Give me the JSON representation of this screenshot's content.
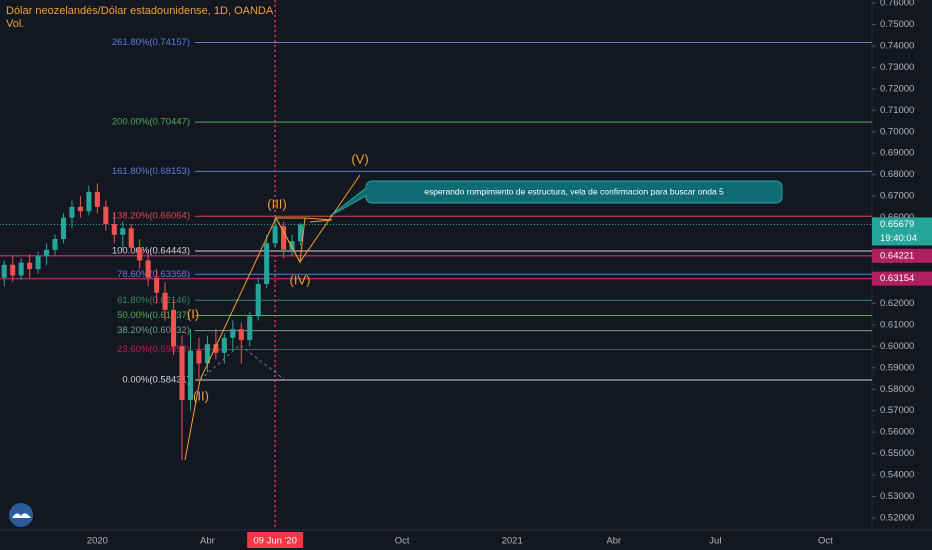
{
  "chart_data": {
    "type": "candlestick",
    "title": "Dólar neozelandés/Dólar estadounidense, 1D, OANDA",
    "volume_label": "Vol.",
    "categories": [
      null,
      null,
      null,
      null,
      null,
      null,
      null,
      null,
      null,
      null,
      null,
      "2020",
      null,
      null,
      null,
      null,
      null,
      null,
      null,
      null,
      null,
      null,
      null,
      null,
      "Abr",
      null,
      null,
      null,
      null,
      null,
      null,
      null,
      "09 Jun '20",
      null,
      null,
      null,
      null,
      null,
      null,
      null,
      null,
      null,
      null,
      null,
      null,
      null,
      null,
      "Oct",
      null,
      null,
      null,
      null,
      null,
      null,
      null,
      null,
      null,
      null,
      null,
      null,
      "2021",
      null,
      null,
      null,
      null,
      null,
      null,
      null,
      null,
      null,
      null,
      null,
      "Abr",
      null,
      null,
      null,
      null,
      null,
      null,
      null,
      null,
      null,
      null,
      null,
      "Jul",
      null,
      null,
      null,
      null,
      null,
      null,
      null,
      null,
      null,
      null,
      null,
      null,
      "Oct",
      null,
      null,
      null,
      null,
      null
    ],
    "open": [
      0.632,
      0.638,
      0.633,
      0.639,
      0.636,
      0.642,
      0.645,
      0.65,
      0.66,
      0.665,
      0.663,
      0.672,
      0.665,
      0.657,
      0.652,
      0.655,
      0.646,
      0.64,
      0.632,
      0.625,
      0.617,
      0.6,
      0.575,
      0.598,
      0.592,
      0.601,
      0.597,
      0.604,
      0.608,
      0.603,
      0.614,
      0.629,
      0.648,
      0.656,
      0.645,
      0.649,
      null,
      null,
      null,
      null,
      null,
      null,
      null,
      null,
      null,
      null,
      null,
      null,
      null,
      null,
      null,
      null,
      null,
      null,
      null,
      null,
      null,
      null,
      null,
      null,
      null,
      null,
      null,
      null,
      null,
      null,
      null,
      null,
      null,
      null,
      null,
      null,
      null,
      null,
      null,
      null,
      null,
      null,
      null,
      null,
      null,
      null,
      null,
      null,
      null,
      null,
      null,
      null,
      null,
      null,
      null,
      null,
      null,
      null,
      null,
      null,
      null,
      null,
      null,
      null,
      null,
      null,
      null
    ],
    "high": [
      0.64,
      0.642,
      0.641,
      0.643,
      0.644,
      0.648,
      0.652,
      0.662,
      0.668,
      0.67,
      0.675,
      0.676,
      0.668,
      0.662,
      0.658,
      0.657,
      0.65,
      0.644,
      0.636,
      0.63,
      0.622,
      0.605,
      0.608,
      0.604,
      0.605,
      0.608,
      0.606,
      0.612,
      0.611,
      0.616,
      0.632,
      0.652,
      0.6605,
      0.658,
      0.652,
      0.6575,
      null,
      null,
      null,
      null,
      null,
      null,
      null,
      null,
      null,
      null,
      null,
      null,
      null,
      null,
      null,
      null,
      null,
      null,
      null,
      null,
      null,
      null,
      null,
      null,
      null,
      null,
      null,
      null,
      null,
      null,
      null,
      null,
      null,
      null,
      null,
      null,
      null,
      null,
      null,
      null,
      null,
      null,
      null,
      null,
      null,
      null,
      null,
      null,
      null,
      null,
      null,
      null,
      null,
      null,
      null,
      null,
      null,
      null,
      null,
      null,
      null,
      null,
      null,
      null,
      null,
      null,
      null
    ],
    "low": [
      0.628,
      0.63,
      0.631,
      0.632,
      0.634,
      0.638,
      0.642,
      0.648,
      0.655,
      0.66,
      0.661,
      0.662,
      0.654,
      0.648,
      0.645,
      0.644,
      0.636,
      0.628,
      0.62,
      0.612,
      0.596,
      0.547,
      0.57,
      0.584,
      0.588,
      0.594,
      0.592,
      0.598,
      0.592,
      0.6,
      0.612,
      0.627,
      0.646,
      0.641,
      0.642,
      0.647,
      null,
      null,
      null,
      null,
      null,
      null,
      null,
      null,
      null,
      null,
      null,
      null,
      null,
      null,
      null,
      null,
      null,
      null,
      null,
      null,
      null,
      null,
      null,
      null,
      null,
      null,
      null,
      null,
      null,
      null,
      null,
      null,
      null,
      null,
      null,
      null,
      null,
      null,
      null,
      null,
      null,
      null,
      null,
      null,
      null,
      null,
      null,
      null,
      null,
      null,
      null,
      null,
      null,
      null,
      null,
      null,
      null,
      null,
      null,
      null,
      null,
      null,
      null,
      null,
      null,
      null,
      null
    ],
    "close": [
      0.638,
      0.633,
      0.639,
      0.636,
      0.642,
      0.645,
      0.65,
      0.66,
      0.665,
      0.663,
      0.672,
      0.665,
      0.657,
      0.652,
      0.655,
      0.646,
      0.64,
      0.632,
      0.625,
      0.617,
      0.6,
      0.575,
      0.598,
      0.592,
      0.601,
      0.597,
      0.604,
      0.608,
      0.603,
      0.614,
      0.629,
      0.648,
      0.656,
      0.645,
      0.649,
      0.65679,
      null,
      null,
      null,
      null,
      null,
      null,
      null,
      null,
      null,
      null,
      null,
      null,
      null,
      null,
      null,
      null,
      null,
      null,
      null,
      null,
      null,
      null,
      null,
      null,
      null,
      null,
      null,
      null,
      null,
      null,
      null,
      null,
      null,
      null,
      null,
      null,
      null,
      null,
      null,
      null,
      null,
      null,
      null,
      null,
      null,
      null,
      null,
      null,
      null,
      null,
      null,
      null,
      null,
      null,
      null,
      null,
      null,
      null,
      null,
      null,
      null,
      null,
      null,
      null,
      null,
      null,
      null
    ],
    "up_color": "#26a69a",
    "down_color": "#ef5350",
    "ylim": [
      0.5144,
      0.7614
    ],
    "yticks": [
      {
        "value": 0.52,
        "label": "0.52000"
      },
      {
        "value": 0.53,
        "label": "0.53000"
      },
      {
        "value": 0.54,
        "label": "0.54000"
      },
      {
        "value": 0.55,
        "label": "0.55000"
      },
      {
        "value": 0.56,
        "label": "0.56000"
      },
      {
        "value": 0.57,
        "label": "0.57000"
      },
      {
        "value": 0.58,
        "label": "0.58000"
      },
      {
        "value": 0.59,
        "label": "0.59000"
      },
      {
        "value": 0.6,
        "label": "0.60000"
      },
      {
        "value": 0.61,
        "label": "0.61000"
      },
      {
        "value": 0.62,
        "label": "0.62000"
      },
      {
        "value": 0.63,
        "label": "0.63000"
      },
      {
        "value": 0.64,
        "label": "0.64000"
      },
      {
        "value": 0.65,
        "label": "0.65000"
      },
      {
        "value": 0.66,
        "label": "0.66000"
      },
      {
        "value": 0.67,
        "label": "0.67000"
      },
      {
        "value": 0.68,
        "label": "0.68000"
      },
      {
        "value": 0.69,
        "label": "0.69000"
      },
      {
        "value": 0.7,
        "label": "0.70000"
      },
      {
        "value": 0.71,
        "label": "0.71000"
      },
      {
        "value": 0.72,
        "label": "0.72000"
      },
      {
        "value": 0.73,
        "label": "0.73000"
      },
      {
        "value": 0.74,
        "label": "0.74000"
      },
      {
        "value": 0.75,
        "label": "0.75000"
      },
      {
        "value": 0.76,
        "label": "0.76000"
      }
    ],
    "grid": false,
    "fib_levels": [
      {
        "label": "261.80%(0.74157)",
        "value": 0.74157,
        "color": "#5b7fd6"
      },
      {
        "label": "200.00%(0.70447)",
        "value": 0.70447,
        "color": "#4caf50"
      },
      {
        "label": "161.80%(0.68153)",
        "value": 0.68153,
        "color": "#5b7fd6"
      },
      {
        "label": "138.20%(0.66064)",
        "value": 0.66064,
        "color": "#e04848"
      },
      {
        "label": "100.00%(0.64443)",
        "value": 0.64443,
        "color": "#d1d4dc"
      },
      {
        "label": "78.60%(0.63358)",
        "value": 0.63358,
        "color": "#5b7fd6"
      },
      {
        "label": "61.80%(0.62146)",
        "value": 0.62146,
        "color": "#2e8b57"
      },
      {
        "label": "50.00%(0.61437)",
        "value": 0.61437,
        "color": "#4caf50"
      },
      {
        "label": "38.20%(0.60732)",
        "value": 0.60732,
        "color": "#66a87a"
      },
      {
        "label": "23.60%(0.59850)",
        "value": 0.5985,
        "color": "#c2185b"
      },
      {
        "label": "0.00%(0.58431)",
        "value": 0.58431,
        "color": "#d1d4dc"
      }
    ],
    "levels": [
      {
        "value": 0.64221,
        "color": "#b0205f"
      },
      {
        "value": 0.63154,
        "color": "#b0205f"
      }
    ],
    "last_price": 0.65679,
    "countdown": "19:40:04",
    "annotations": [
      "(I)",
      "(II)",
      "(III)",
      "(IV)",
      "(V)"
    ],
    "callout": "esperando rompimiento de estructura, vela de confirmacion para buscar onda 5"
  }
}
